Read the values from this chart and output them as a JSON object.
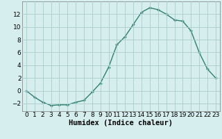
{
  "x": [
    0,
    1,
    2,
    3,
    4,
    5,
    6,
    7,
    8,
    9,
    10,
    11,
    12,
    13,
    14,
    15,
    16,
    17,
    18,
    19,
    20,
    21,
    22,
    23
  ],
  "y": [
    0,
    -1,
    -1.8,
    -2.3,
    -2.2,
    -2.2,
    -1.8,
    -1.5,
    -0.2,
    1.2,
    3.7,
    7.2,
    8.5,
    10.4,
    12.3,
    13.0,
    12.7,
    12.0,
    11.1,
    10.9,
    9.4,
    6.0,
    3.4,
    2.0
  ],
  "line_color": "#2e7f6f",
  "marker": "+",
  "marker_size": 3,
  "marker_lw": 1.0,
  "line_width": 1.0,
  "bg_color": "#d6eeee",
  "grid_color": "#aacccc",
  "xlabel": "Humidex (Indice chaleur)",
  "xlim": [
    -0.5,
    23.5
  ],
  "ylim": [
    -3.2,
    14.0
  ],
  "yticks": [
    -2,
    0,
    2,
    4,
    6,
    8,
    10,
    12
  ],
  "xticks": [
    0,
    1,
    2,
    3,
    4,
    5,
    6,
    7,
    8,
    9,
    10,
    11,
    12,
    13,
    14,
    15,
    16,
    17,
    18,
    19,
    20,
    21,
    22,
    23
  ],
  "xlabel_fontsize": 7.5,
  "tick_fontsize": 6.5
}
